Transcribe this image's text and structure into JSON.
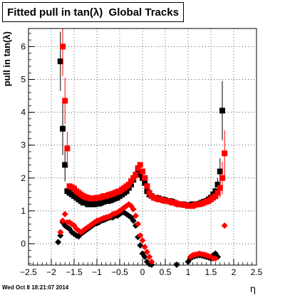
{
  "chart_data": {
    "type": "scatter",
    "title": "Fitted pull in tan(λ)  Global Tracks",
    "xlabel": "η",
    "ylabel": "pull in tan(λ)",
    "xlim": [
      -2.5,
      2.5
    ],
    "ylim": [
      -0.65,
      6.55
    ],
    "xticks": [
      -2.5,
      -2,
      -1.5,
      -1,
      -0.5,
      0,
      0.5,
      1,
      1.5,
      2,
      2.5
    ],
    "yticks": [
      0,
      1,
      2,
      3,
      4,
      5,
      6
    ],
    "grid": true,
    "timestamp": "Wed Oct  8 18:21:07 2014",
    "colors": {
      "black": "#000000",
      "red": "#ff0000"
    },
    "series": [
      {
        "color": "#000000",
        "marker": "square",
        "x": [
          -1.8,
          -1.75,
          -1.7,
          -1.65,
          -1.6,
          -1.55,
          -1.5,
          -1.45,
          -1.4,
          -1.35,
          -1.3,
          -1.25,
          -1.2,
          -1.15,
          -1.1,
          -1.05,
          -1.0,
          -0.95,
          -0.9,
          -0.85,
          -0.8,
          -0.75,
          -0.7,
          -0.65,
          -0.6,
          -0.55,
          -0.5,
          -0.45,
          -0.4,
          -0.35,
          -0.3,
          -0.25,
          -0.2,
          -0.15,
          -0.1,
          -0.05,
          0.0,
          0.05,
          0.1,
          0.15,
          0.2,
          0.25,
          0.3,
          0.35,
          0.4,
          0.45,
          0.5,
          0.55,
          0.6,
          0.65,
          0.7,
          0.75,
          0.8,
          0.85,
          0.9,
          0.95,
          1.0,
          1.05,
          1.1,
          1.15,
          1.2,
          1.25,
          1.3,
          1.35,
          1.4,
          1.45,
          1.5,
          1.55,
          1.6,
          1.65,
          1.7,
          1.75
        ],
        "y": [
          5.55,
          3.5,
          2.4,
          1.6,
          1.55,
          1.5,
          1.45,
          1.4,
          1.35,
          1.3,
          1.25,
          1.25,
          1.2,
          1.2,
          1.2,
          1.2,
          1.22,
          1.22,
          1.25,
          1.28,
          1.3,
          1.3,
          1.32,
          1.35,
          1.38,
          1.4,
          1.45,
          1.5,
          1.55,
          1.6,
          1.7,
          1.8,
          1.95,
          2.1,
          2.2,
          2.1,
          2.0,
          1.85,
          1.6,
          1.5,
          1.45,
          1.4,
          1.4,
          1.38,
          1.35,
          1.35,
          1.32,
          1.3,
          1.3,
          1.28,
          1.25,
          1.22,
          1.2,
          1.2,
          1.2,
          1.18,
          1.18,
          1.18,
          1.2,
          1.2,
          1.2,
          1.22,
          1.25,
          1.28,
          1.3,
          1.35,
          1.4,
          1.5,
          1.6,
          1.8,
          2.2,
          4.05
        ],
        "err": [
          0.9,
          0.8,
          0.5,
          0,
          0,
          0,
          0,
          0,
          0,
          0,
          0,
          0,
          0,
          0,
          0,
          0,
          0,
          0,
          0,
          0,
          0,
          0,
          0,
          0,
          0,
          0,
          0,
          0,
          0,
          0,
          0,
          0,
          0,
          0,
          0,
          0,
          0,
          0,
          0,
          0,
          0,
          0,
          0,
          0,
          0,
          0,
          0,
          0,
          0,
          0,
          0,
          0,
          0,
          0,
          0,
          0,
          0,
          0,
          0,
          0,
          0,
          0,
          0,
          0,
          0,
          0,
          0,
          0,
          0.1,
          0.2,
          0.4,
          0.9
        ]
      },
      {
        "color": "#ff0000",
        "marker": "square",
        "x": [
          -1.75,
          -1.7,
          -1.65,
          -1.6,
          -1.55,
          -1.5,
          -1.45,
          -1.4,
          -1.35,
          -1.3,
          -1.25,
          -1.2,
          -1.15,
          -1.1,
          -1.05,
          -1.0,
          -0.95,
          -0.9,
          -0.85,
          -0.8,
          -0.75,
          -0.7,
          -0.65,
          -0.6,
          -0.55,
          -0.5,
          -0.45,
          -0.4,
          -0.35,
          -0.3,
          -0.25,
          -0.2,
          -0.15,
          -0.1,
          -0.05,
          0.0,
          0.05,
          0.1,
          0.15,
          0.2,
          0.25,
          0.3,
          0.35,
          0.4,
          0.45,
          0.5,
          0.55,
          0.6,
          0.65,
          0.7,
          0.75,
          0.8,
          0.85,
          0.9,
          0.95,
          1.0,
          1.05,
          1.1,
          1.15,
          1.2,
          1.25,
          1.3,
          1.35,
          1.4,
          1.45,
          1.5,
          1.55,
          1.6,
          1.65,
          1.7,
          1.75,
          1.8
        ],
        "y": [
          6.0,
          4.35,
          2.9,
          1.75,
          1.72,
          1.68,
          1.6,
          1.55,
          1.5,
          1.45,
          1.42,
          1.4,
          1.38,
          1.38,
          1.38,
          1.4,
          1.4,
          1.42,
          1.45,
          1.45,
          1.48,
          1.5,
          1.52,
          1.55,
          1.58,
          1.6,
          1.65,
          1.7,
          1.75,
          1.8,
          1.9,
          2.0,
          2.1,
          2.3,
          2.4,
          2.2,
          2.0,
          1.75,
          1.55,
          1.45,
          1.4,
          1.38,
          1.35,
          1.35,
          1.32,
          1.3,
          1.3,
          1.28,
          1.25,
          1.25,
          1.22,
          1.2,
          1.2,
          1.18,
          1.18,
          1.15,
          1.15,
          1.15,
          1.18,
          1.2,
          1.2,
          1.22,
          1.25,
          1.28,
          1.3,
          1.35,
          1.4,
          1.45,
          1.55,
          1.7,
          2.0,
          2.75
        ],
        "err": [
          0.9,
          0.7,
          0.5,
          0,
          0,
          0,
          0,
          0,
          0,
          0,
          0,
          0,
          0,
          0,
          0,
          0,
          0,
          0,
          0,
          0,
          0,
          0,
          0,
          0,
          0,
          0,
          0,
          0,
          0,
          0,
          0,
          0,
          0,
          0,
          0,
          0,
          0,
          0,
          0,
          0,
          0,
          0,
          0,
          0,
          0,
          0,
          0,
          0,
          0,
          0,
          0,
          0,
          0,
          0,
          0,
          0,
          0,
          0,
          0,
          0,
          0,
          0,
          0,
          0,
          0,
          0,
          0,
          0.1,
          0.2,
          0.3,
          0.5,
          0.7
        ]
      },
      {
        "color": "#000000",
        "marker": "diamond",
        "x": [
          -1.85,
          -1.8,
          -1.75,
          -1.7,
          -1.65,
          -1.6,
          -1.55,
          -1.5,
          -1.45,
          -1.4,
          -1.35,
          -1.3,
          -1.25,
          -1.2,
          -1.15,
          -1.1,
          -1.05,
          -1.0,
          -0.95,
          -0.9,
          -0.85,
          -0.8,
          -0.75,
          -0.7,
          -0.65,
          -0.6,
          -0.55,
          -0.5,
          -0.45,
          -0.4,
          -0.35,
          -0.3,
          -0.25,
          -0.2,
          -0.15,
          -0.1,
          -0.05,
          0.0,
          0.05,
          0.1,
          0.15,
          0.2,
          0.75,
          1.0,
          1.05,
          1.1,
          1.15,
          1.2,
          1.25,
          1.3,
          1.35,
          1.4,
          1.45,
          1.5,
          1.55,
          1.6,
          1.65
        ],
        "y": [
          0.05,
          0.25,
          0.65,
          0.55,
          0.5,
          0.45,
          0.35,
          0.3,
          0.25,
          0.22,
          0.3,
          0.35,
          0.4,
          0.45,
          0.5,
          0.55,
          0.6,
          0.62,
          0.65,
          0.7,
          0.72,
          0.75,
          0.78,
          0.8,
          0.8,
          0.85,
          0.85,
          0.9,
          0.95,
          0.95,
          0.9,
          0.85,
          0.8,
          0.7,
          0.55,
          0.2,
          -0.05,
          -0.3,
          -0.4,
          -0.55,
          -0.62,
          -0.64,
          -0.64,
          -0.55,
          -0.45,
          -0.4,
          -0.38,
          -0.36,
          -0.35,
          -0.36,
          -0.38,
          -0.4,
          -0.42,
          -0.45,
          -0.35,
          -0.3,
          -0.4
        ],
        "err": []
      },
      {
        "color": "#ff0000",
        "marker": "diamond",
        "x": [
          -1.8,
          -1.75,
          -1.7,
          -1.65,
          -1.6,
          -1.55,
          -1.5,
          -1.45,
          -1.4,
          -1.35,
          -1.3,
          -1.25,
          -1.2,
          -1.15,
          -1.1,
          -1.05,
          -1.0,
          -0.95,
          -0.9,
          -0.85,
          -0.8,
          -0.75,
          -0.7,
          -0.65,
          -0.6,
          -0.55,
          -0.5,
          -0.45,
          -0.4,
          -0.35,
          -0.3,
          -0.25,
          -0.2,
          -0.15,
          -0.1,
          -0.05,
          0.0,
          0.05,
          0.1,
          0.15,
          0.2,
          1.05,
          1.1,
          1.15,
          1.2,
          1.25,
          1.3,
          1.35,
          1.4,
          1.45,
          1.5,
          1.55,
          1.6,
          1.8
        ],
        "y": [
          0.35,
          0.7,
          0.9,
          0.65,
          0.65,
          0.6,
          0.55,
          0.45,
          0.4,
          0.35,
          0.4,
          0.45,
          0.5,
          0.55,
          0.6,
          0.65,
          0.7,
          0.72,
          0.75,
          0.78,
          0.8,
          0.82,
          0.85,
          0.9,
          0.92,
          0.95,
          1.0,
          1.05,
          1.1,
          1.15,
          1.2,
          1.15,
          1.05,
          0.85,
          0.6,
          0.25,
          0.1,
          -0.1,
          -0.25,
          -0.4,
          -0.55,
          -0.4,
          -0.35,
          -0.33,
          -0.32,
          -0.3,
          -0.32,
          -0.33,
          -0.35,
          -0.38,
          -0.4,
          -0.45,
          -0.45,
          0.55
        ],
        "err": []
      }
    ]
  }
}
